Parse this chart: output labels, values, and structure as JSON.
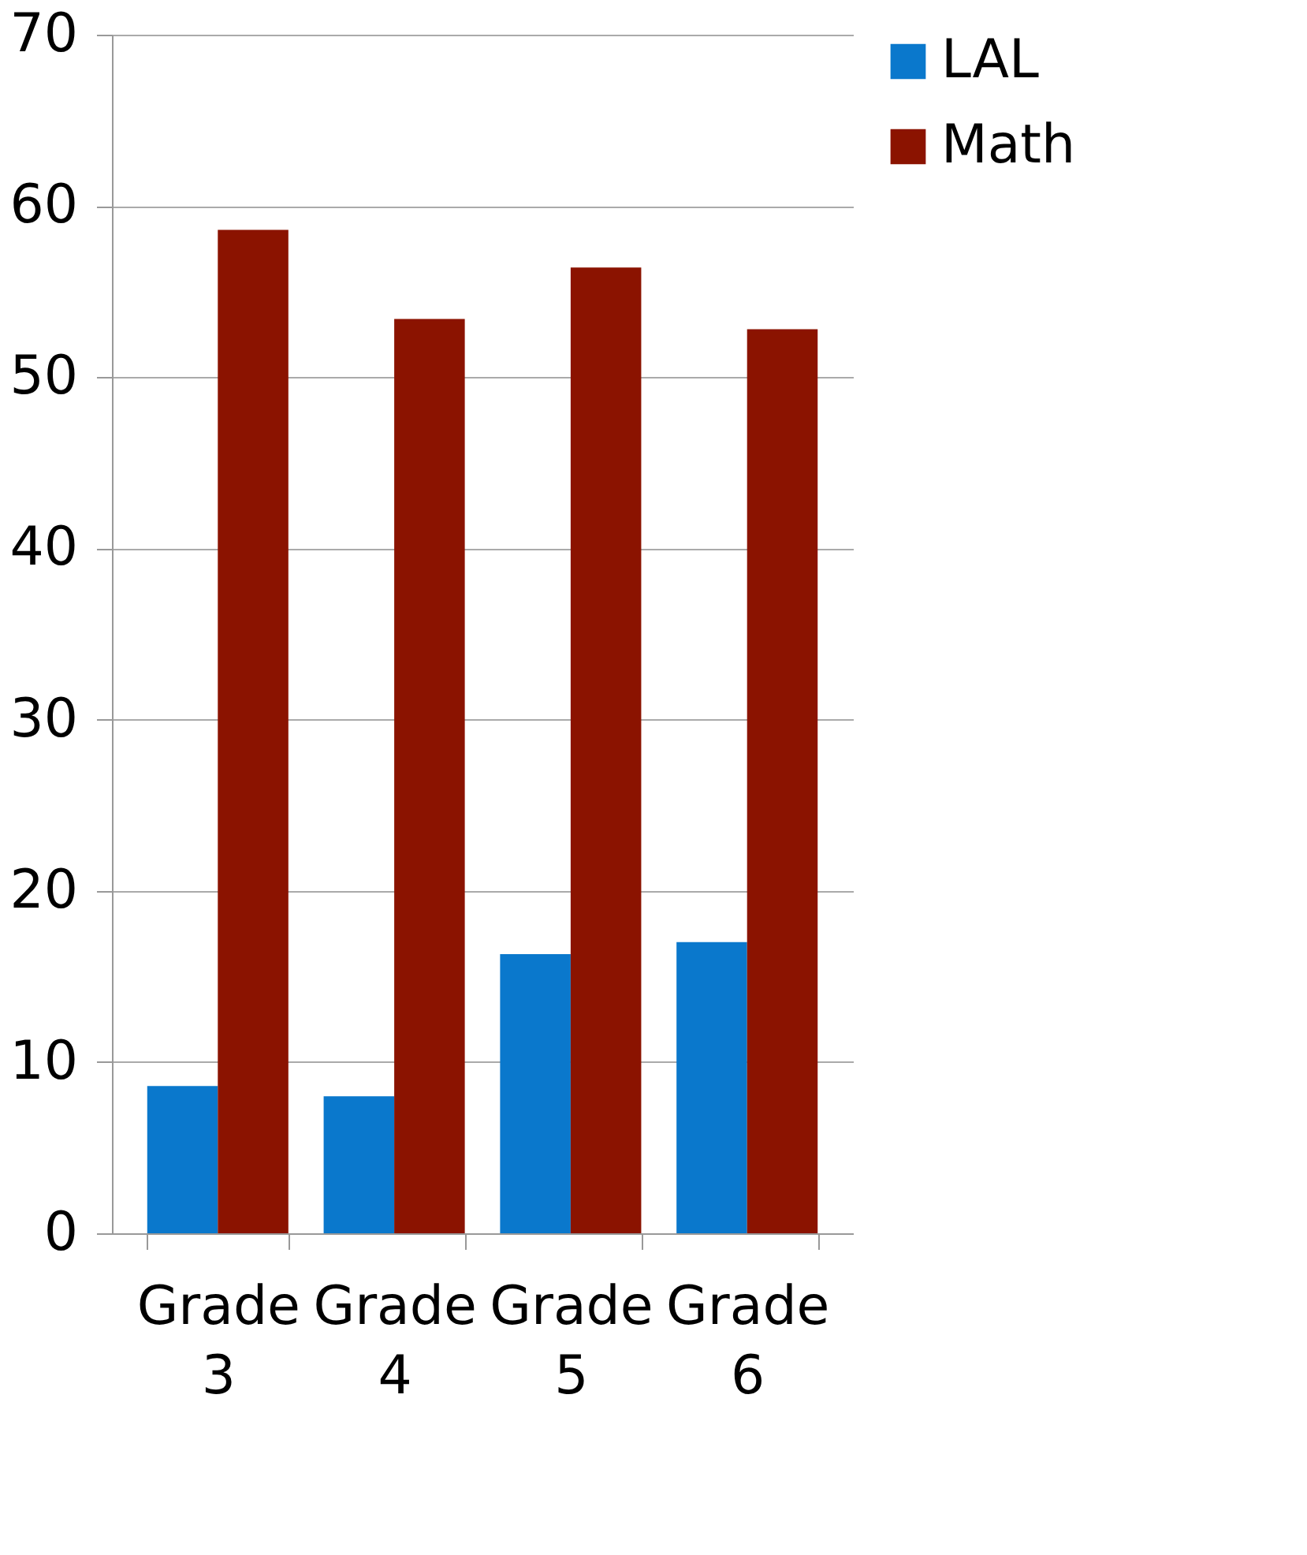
{
  "chart_data": {
    "type": "bar",
    "categories": [
      "Grade 3",
      "Grade 4",
      "Grade 5",
      "Grade 6"
    ],
    "series": [
      {
        "name": "LAL",
        "color": "#0a78cc",
        "values": [
          8.6,
          8.0,
          16.3,
          17.0
        ]
      },
      {
        "name": "Math",
        "color": "#8b1300",
        "values": [
          58.6,
          53.4,
          56.4,
          52.8
        ]
      }
    ],
    "ylim": [
      0,
      70
    ],
    "yticks": [
      0,
      10,
      20,
      30,
      40,
      50,
      60,
      70
    ],
    "grid": "y",
    "legend": "right"
  }
}
